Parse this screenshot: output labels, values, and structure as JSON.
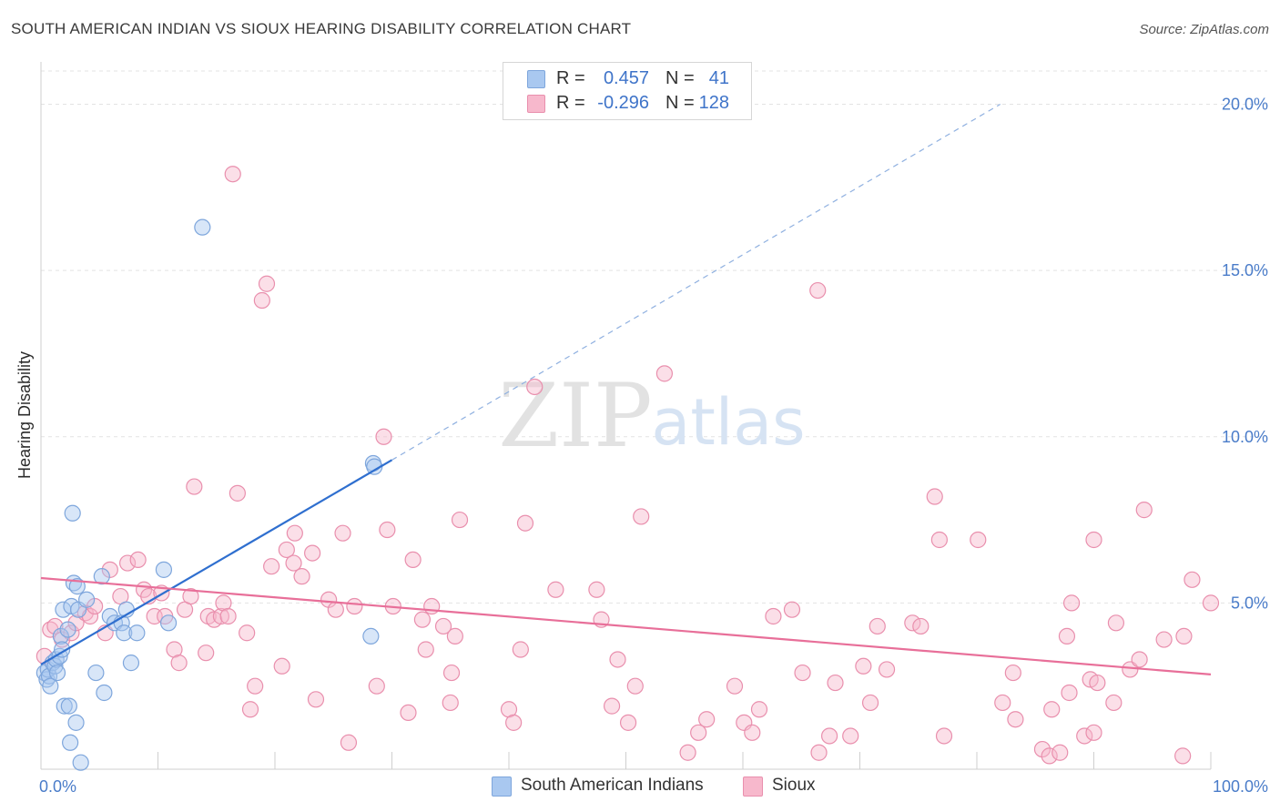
{
  "header": {
    "title": "SOUTH AMERICAN INDIAN VS SIOUX HEARING DISABILITY CORRELATION CHART",
    "source": "Source: ZipAtlas.com"
  },
  "watermark": {
    "zip": "ZIP",
    "atlas": "atlas"
  },
  "legend_top": {
    "rows": [
      {
        "r_label": "R =",
        "r_value": "0.457",
        "n_label": "N =",
        "n_value": "41",
        "color": "#a9c8f0",
        "border": "#7ea6dc"
      },
      {
        "r_label": "R =",
        "r_value": "-0.296",
        "n_label": "N =",
        "n_value": "128",
        "color": "#f7b8cc",
        "border": "#e98fad"
      }
    ]
  },
  "legend_bottom": {
    "items": [
      {
        "label": "South American Indians",
        "color": "#a9c8f0",
        "border": "#7ea6dc"
      },
      {
        "label": "Sioux",
        "color": "#f7b8cc",
        "border": "#e98fad"
      }
    ]
  },
  "chart_data": {
    "type": "scatter",
    "title": "SOUTH AMERICAN INDIAN VS SIOUX HEARING DISABILITY CORRELATION CHART",
    "xlabel": "",
    "ylabel": "Hearing Disability",
    "xlim": [
      0,
      100
    ],
    "ylim": [
      0,
      21
    ],
    "x_tick_labels": [
      {
        "value": 0,
        "label": "0.0%"
      },
      {
        "value": 100,
        "label": "100.0%"
      }
    ],
    "x_minor_ticks": [
      10,
      20,
      30,
      40,
      50,
      60,
      70,
      80,
      90,
      100
    ],
    "y_ticks": [
      {
        "value": 5,
        "label": "5.0%"
      },
      {
        "value": 10,
        "label": "10.0%"
      },
      {
        "value": 15,
        "label": "15.0%"
      },
      {
        "value": 20,
        "label": "20.0%"
      }
    ],
    "grid": "horizontal dashed",
    "legend_placement": "top-center",
    "series": [
      {
        "name": "South American Indians",
        "color": "#a9c8f0",
        "stroke": "#7ea6dc",
        "line_color": "#2f6fcf",
        "trend": {
          "x0": 0,
          "y0": 3.15,
          "x1": 30,
          "y1": 9.3,
          "dash_to_x": 82,
          "dash_to_y": 20.0
        },
        "points": [
          [
            0.3,
            2.9
          ],
          [
            0.5,
            2.7
          ],
          [
            0.6,
            3.0
          ],
          [
            0.7,
            2.8
          ],
          [
            0.8,
            2.5
          ],
          [
            1.0,
            3.2
          ],
          [
            1.2,
            3.1
          ],
          [
            1.3,
            3.3
          ],
          [
            1.4,
            2.9
          ],
          [
            1.6,
            3.4
          ],
          [
            1.7,
            4.0
          ],
          [
            1.8,
            3.6
          ],
          [
            1.9,
            4.8
          ],
          [
            2.0,
            1.9
          ],
          [
            2.3,
            4.2
          ],
          [
            2.4,
            1.9
          ],
          [
            2.5,
            0.8
          ],
          [
            2.6,
            4.9
          ],
          [
            2.7,
            7.7
          ],
          [
            2.8,
            5.6
          ],
          [
            3.0,
            1.4
          ],
          [
            3.1,
            5.5
          ],
          [
            3.2,
            4.8
          ],
          [
            3.4,
            0.2
          ],
          [
            3.9,
            5.1
          ],
          [
            4.7,
            2.9
          ],
          [
            5.2,
            5.8
          ],
          [
            5.4,
            2.3
          ],
          [
            5.9,
            4.6
          ],
          [
            6.3,
            4.4
          ],
          [
            6.9,
            4.4
          ],
          [
            7.1,
            4.1
          ],
          [
            7.3,
            4.8
          ],
          [
            7.7,
            3.2
          ],
          [
            8.2,
            4.1
          ],
          [
            10.5,
            6.0
          ],
          [
            10.9,
            4.4
          ],
          [
            13.8,
            16.3
          ],
          [
            28.4,
            9.2
          ],
          [
            28.5,
            9.1
          ],
          [
            28.2,
            4.0
          ]
        ]
      },
      {
        "name": "Sioux",
        "color": "#f7b8cc",
        "stroke": "#e98fad",
        "line_color": "#e86f99",
        "trend": {
          "x0": 0,
          "y0": 5.75,
          "x1": 100,
          "y1": 2.85
        },
        "points": [
          [
            0.3,
            3.4
          ],
          [
            0.8,
            4.2
          ],
          [
            1.2,
            4.3
          ],
          [
            1.8,
            3.9
          ],
          [
            2.6,
            4.1
          ],
          [
            3.0,
            4.4
          ],
          [
            3.8,
            4.7
          ],
          [
            4.2,
            4.6
          ],
          [
            4.6,
            4.9
          ],
          [
            5.5,
            4.1
          ],
          [
            5.9,
            6.0
          ],
          [
            6.8,
            5.2
          ],
          [
            7.4,
            6.2
          ],
          [
            8.3,
            6.3
          ],
          [
            8.8,
            5.4
          ],
          [
            9.2,
            5.2
          ],
          [
            9.7,
            4.6
          ],
          [
            10.3,
            5.3
          ],
          [
            10.6,
            4.6
          ],
          [
            11.4,
            3.6
          ],
          [
            11.8,
            3.2
          ],
          [
            12.3,
            4.8
          ],
          [
            12.8,
            5.2
          ],
          [
            13.1,
            8.5
          ],
          [
            14.1,
            3.5
          ],
          [
            14.3,
            4.6
          ],
          [
            14.8,
            4.5
          ],
          [
            15.4,
            4.6
          ],
          [
            15.6,
            5.0
          ],
          [
            16.0,
            4.6
          ],
          [
            16.4,
            17.9
          ],
          [
            16.8,
            8.3
          ],
          [
            17.6,
            4.1
          ],
          [
            17.9,
            1.8
          ],
          [
            18.3,
            2.5
          ],
          [
            18.9,
            14.1
          ],
          [
            19.3,
            14.6
          ],
          [
            19.7,
            6.1
          ],
          [
            20.6,
            3.1
          ],
          [
            21.0,
            6.6
          ],
          [
            21.6,
            6.2
          ],
          [
            21.7,
            7.1
          ],
          [
            22.3,
            5.8
          ],
          [
            23.2,
            6.5
          ],
          [
            23.5,
            2.1
          ],
          [
            24.6,
            5.1
          ],
          [
            25.2,
            4.8
          ],
          [
            25.8,
            7.1
          ],
          [
            26.3,
            0.8
          ],
          [
            26.8,
            4.9
          ],
          [
            28.7,
            2.5
          ],
          [
            29.3,
            10.0
          ],
          [
            29.6,
            7.2
          ],
          [
            30.1,
            4.9
          ],
          [
            31.4,
            1.7
          ],
          [
            31.8,
            6.3
          ],
          [
            32.6,
            4.5
          ],
          [
            32.9,
            3.6
          ],
          [
            33.4,
            4.9
          ],
          [
            34.4,
            4.3
          ],
          [
            35.1,
            2.9
          ],
          [
            35.4,
            4.0
          ],
          [
            35.8,
            7.5
          ],
          [
            40.0,
            1.8
          ],
          [
            40.4,
            1.4
          ],
          [
            41.0,
            3.6
          ],
          [
            41.4,
            7.4
          ],
          [
            42.2,
            11.5
          ],
          [
            44.0,
            5.4
          ],
          [
            47.5,
            5.4
          ],
          [
            47.9,
            4.5
          ],
          [
            48.8,
            1.9
          ],
          [
            49.3,
            3.3
          ],
          [
            50.2,
            1.4
          ],
          [
            50.8,
            2.5
          ],
          [
            51.3,
            7.6
          ],
          [
            53.3,
            11.9
          ],
          [
            55.3,
            0.5
          ],
          [
            56.2,
            1.1
          ],
          [
            56.9,
            1.5
          ],
          [
            59.3,
            2.5
          ],
          [
            60.1,
            1.4
          ],
          [
            60.8,
            1.1
          ],
          [
            61.4,
            1.8
          ],
          [
            62.6,
            4.6
          ],
          [
            64.2,
            4.8
          ],
          [
            65.1,
            2.9
          ],
          [
            66.4,
            14.4
          ],
          [
            66.5,
            0.5
          ],
          [
            67.4,
            1.0
          ],
          [
            67.9,
            2.6
          ],
          [
            69.2,
            1.0
          ],
          [
            70.3,
            3.1
          ],
          [
            70.9,
            2.0
          ],
          [
            71.5,
            4.3
          ],
          [
            72.3,
            3.0
          ],
          [
            74.5,
            4.4
          ],
          [
            75.2,
            4.3
          ],
          [
            76.4,
            8.2
          ],
          [
            76.8,
            6.9
          ],
          [
            77.2,
            1.0
          ],
          [
            80.1,
            6.9
          ],
          [
            82.2,
            2.0
          ],
          [
            83.1,
            2.9
          ],
          [
            83.3,
            1.5
          ],
          [
            85.6,
            0.6
          ],
          [
            86.2,
            0.4
          ],
          [
            86.4,
            1.8
          ],
          [
            87.1,
            0.5
          ],
          [
            87.7,
            4.0
          ],
          [
            87.9,
            2.3
          ],
          [
            88.1,
            5.0
          ],
          [
            89.2,
            1.0
          ],
          [
            89.7,
            2.7
          ],
          [
            90.0,
            1.1
          ],
          [
            90.3,
            2.6
          ],
          [
            91.7,
            2.0
          ],
          [
            91.9,
            4.4
          ],
          [
            93.1,
            3.0
          ],
          [
            93.9,
            3.3
          ],
          [
            94.3,
            7.8
          ],
          [
            97.6,
            0.4
          ],
          [
            97.7,
            4.0
          ],
          [
            98.4,
            5.7
          ],
          [
            100.0,
            5.0
          ],
          [
            90.0,
            6.9
          ],
          [
            96.0,
            3.9
          ],
          [
            35.0,
            2.0
          ]
        ]
      }
    ]
  }
}
